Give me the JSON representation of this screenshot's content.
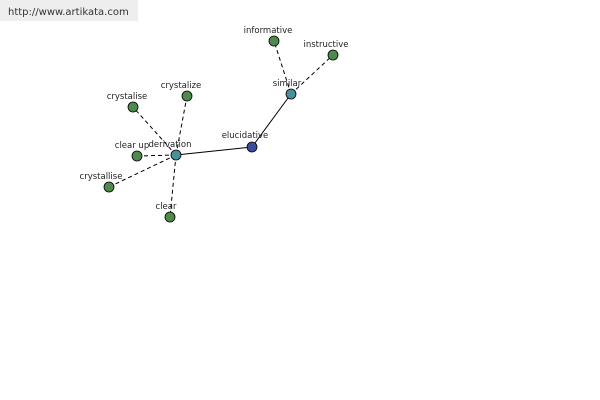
{
  "header": {
    "url": "http://www.artikata.com"
  },
  "nodes": [
    {
      "label": "elucidative"
    },
    {
      "label": "similar"
    },
    {
      "label": "informative"
    },
    {
      "label": "instructive"
    },
    {
      "label": "derivation"
    },
    {
      "label": "crystalise"
    },
    {
      "label": "crystalize"
    },
    {
      "label": "clear up"
    },
    {
      "label": "crystallise"
    },
    {
      "label": "clear"
    }
  ]
}
